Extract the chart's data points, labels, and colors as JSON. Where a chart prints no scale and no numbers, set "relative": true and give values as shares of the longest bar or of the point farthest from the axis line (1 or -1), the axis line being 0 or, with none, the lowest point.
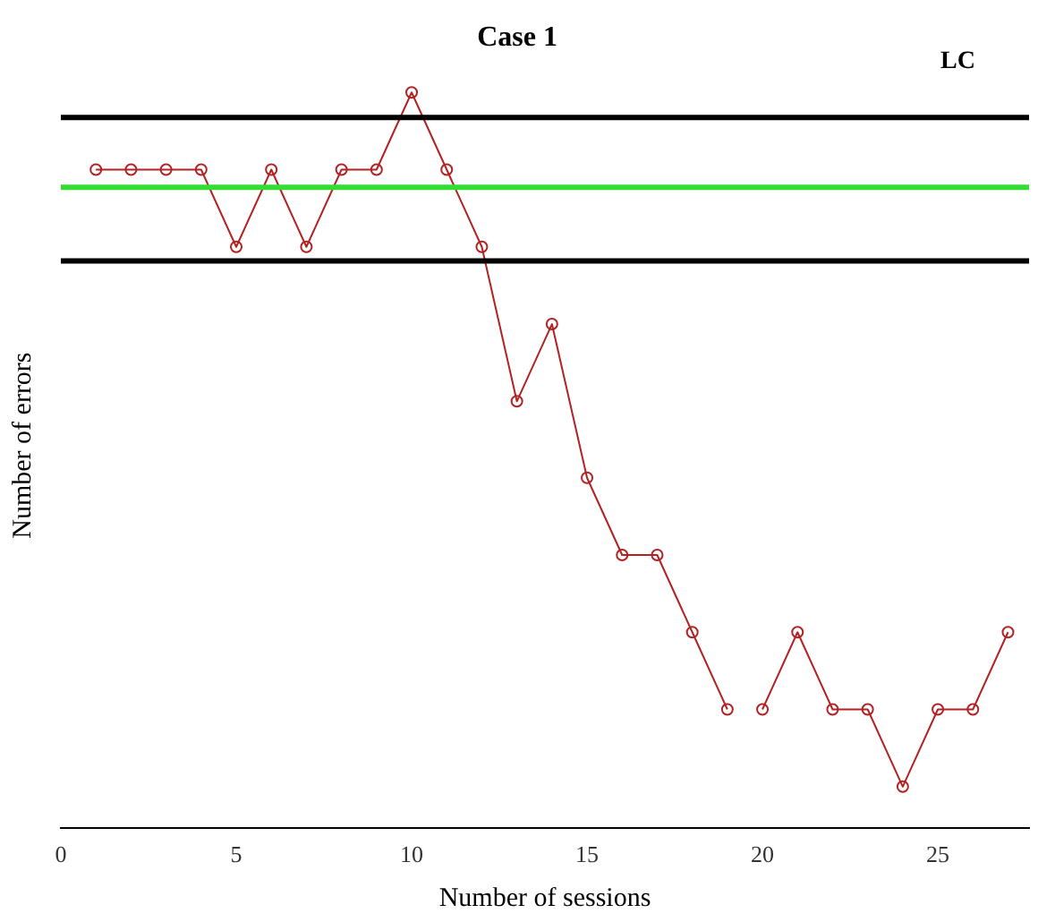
{
  "chart_data": {
    "type": "line",
    "title": "Case 1",
    "xlabel": "Number of sessions",
    "ylabel": "Number of errors",
    "relative": true,
    "series": [
      {
        "color": "#b22222",
        "x": [
          1,
          2,
          3,
          4,
          5,
          6,
          7,
          8,
          9,
          10,
          11,
          12,
          13,
          14,
          15,
          16,
          17,
          18,
          19
        ],
        "values": [
          0.895,
          0.895,
          0.895,
          0.895,
          0.79,
          0.895,
          0.79,
          0.895,
          0.895,
          1,
          0.895,
          0.79,
          0.58,
          0.685,
          0.476,
          0.371,
          0.371,
          0.266,
          0.161
        ]
      },
      {
        "color": "#b22222",
        "x": [
          20,
          21,
          22,
          23,
          24,
          25,
          26,
          27
        ],
        "values": [
          0.161,
          0.266,
          0.161,
          0.161,
          0.056,
          0.161,
          0.161,
          0.266
        ]
      }
    ],
    "xlim": [
      0,
      27.6
    ],
    "xticks": [
      0,
      5,
      10,
      15,
      20,
      25
    ],
    "marker": "circle",
    "line_style": "solid",
    "grid": false,
    "legend": false,
    "ref_lines": [
      {
        "axis": "y",
        "value": 0.966,
        "color": "#000000"
      },
      {
        "axis": "y",
        "value": 0.871,
        "color": "#33dd33"
      },
      {
        "axis": "y",
        "value": 0.771,
        "color": "#000000"
      }
    ],
    "annotations": [
      "LC"
    ]
  }
}
